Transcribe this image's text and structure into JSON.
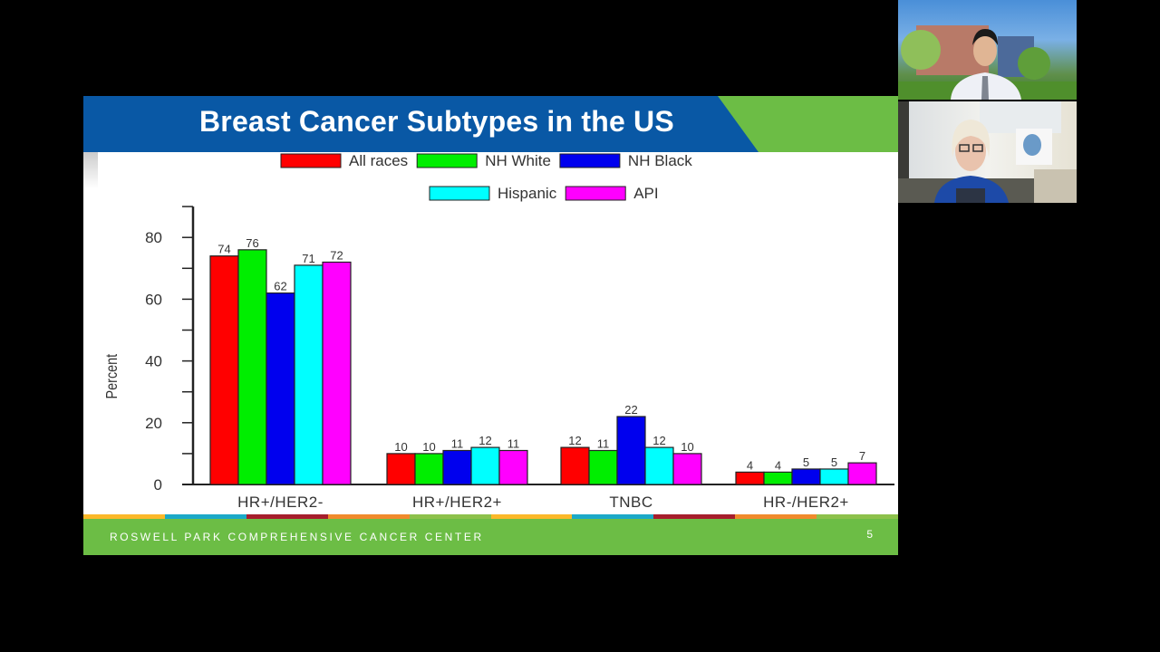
{
  "slide": {
    "title": "Breast Cancer Subtypes in the US",
    "footer": "ROSWELL PARK COMPREHENSIVE CANCER CENTER",
    "page_number": "5",
    "colors": {
      "title_blue": "#0958a5",
      "brand_green": "#6cbd45"
    },
    "stripe_colors": [
      "#fbb829",
      "#1ba9c8",
      "#a61e2c",
      "#f08a2c",
      "#8dc14b",
      "#fbb829",
      "#1ba9c8",
      "#a61e2c",
      "#f08a2c",
      "#8dc14b"
    ]
  },
  "chart_data": {
    "type": "bar",
    "title": "",
    "xlabel": "",
    "ylabel": "Percent",
    "ylim": [
      0,
      90
    ],
    "yticks": [
      0,
      20,
      40,
      60,
      80
    ],
    "minor_tick_step": 10,
    "grid": false,
    "legend_position": "top",
    "categories": [
      "HR+/HER2-",
      "HR+/HER2+",
      "TNBC",
      "HR-/HER2+"
    ],
    "series": [
      {
        "name": "All races",
        "color": "#ff0000",
        "values": [
          74,
          10,
          12,
          4
        ]
      },
      {
        "name": "NH White",
        "color": "#00ee00",
        "values": [
          76,
          10,
          11,
          4
        ]
      },
      {
        "name": "NH Black",
        "color": "#0000ee",
        "values": [
          62,
          11,
          22,
          5
        ]
      },
      {
        "name": "Hispanic",
        "color": "#00ffff",
        "values": [
          71,
          12,
          12,
          5
        ]
      },
      {
        "name": "API",
        "color": "#ff00ff",
        "values": [
          72,
          11,
          10,
          7
        ]
      }
    ]
  },
  "participants": [
    {
      "name": "participant-1",
      "label": ""
    },
    {
      "name": "participant-2",
      "label": ""
    }
  ]
}
